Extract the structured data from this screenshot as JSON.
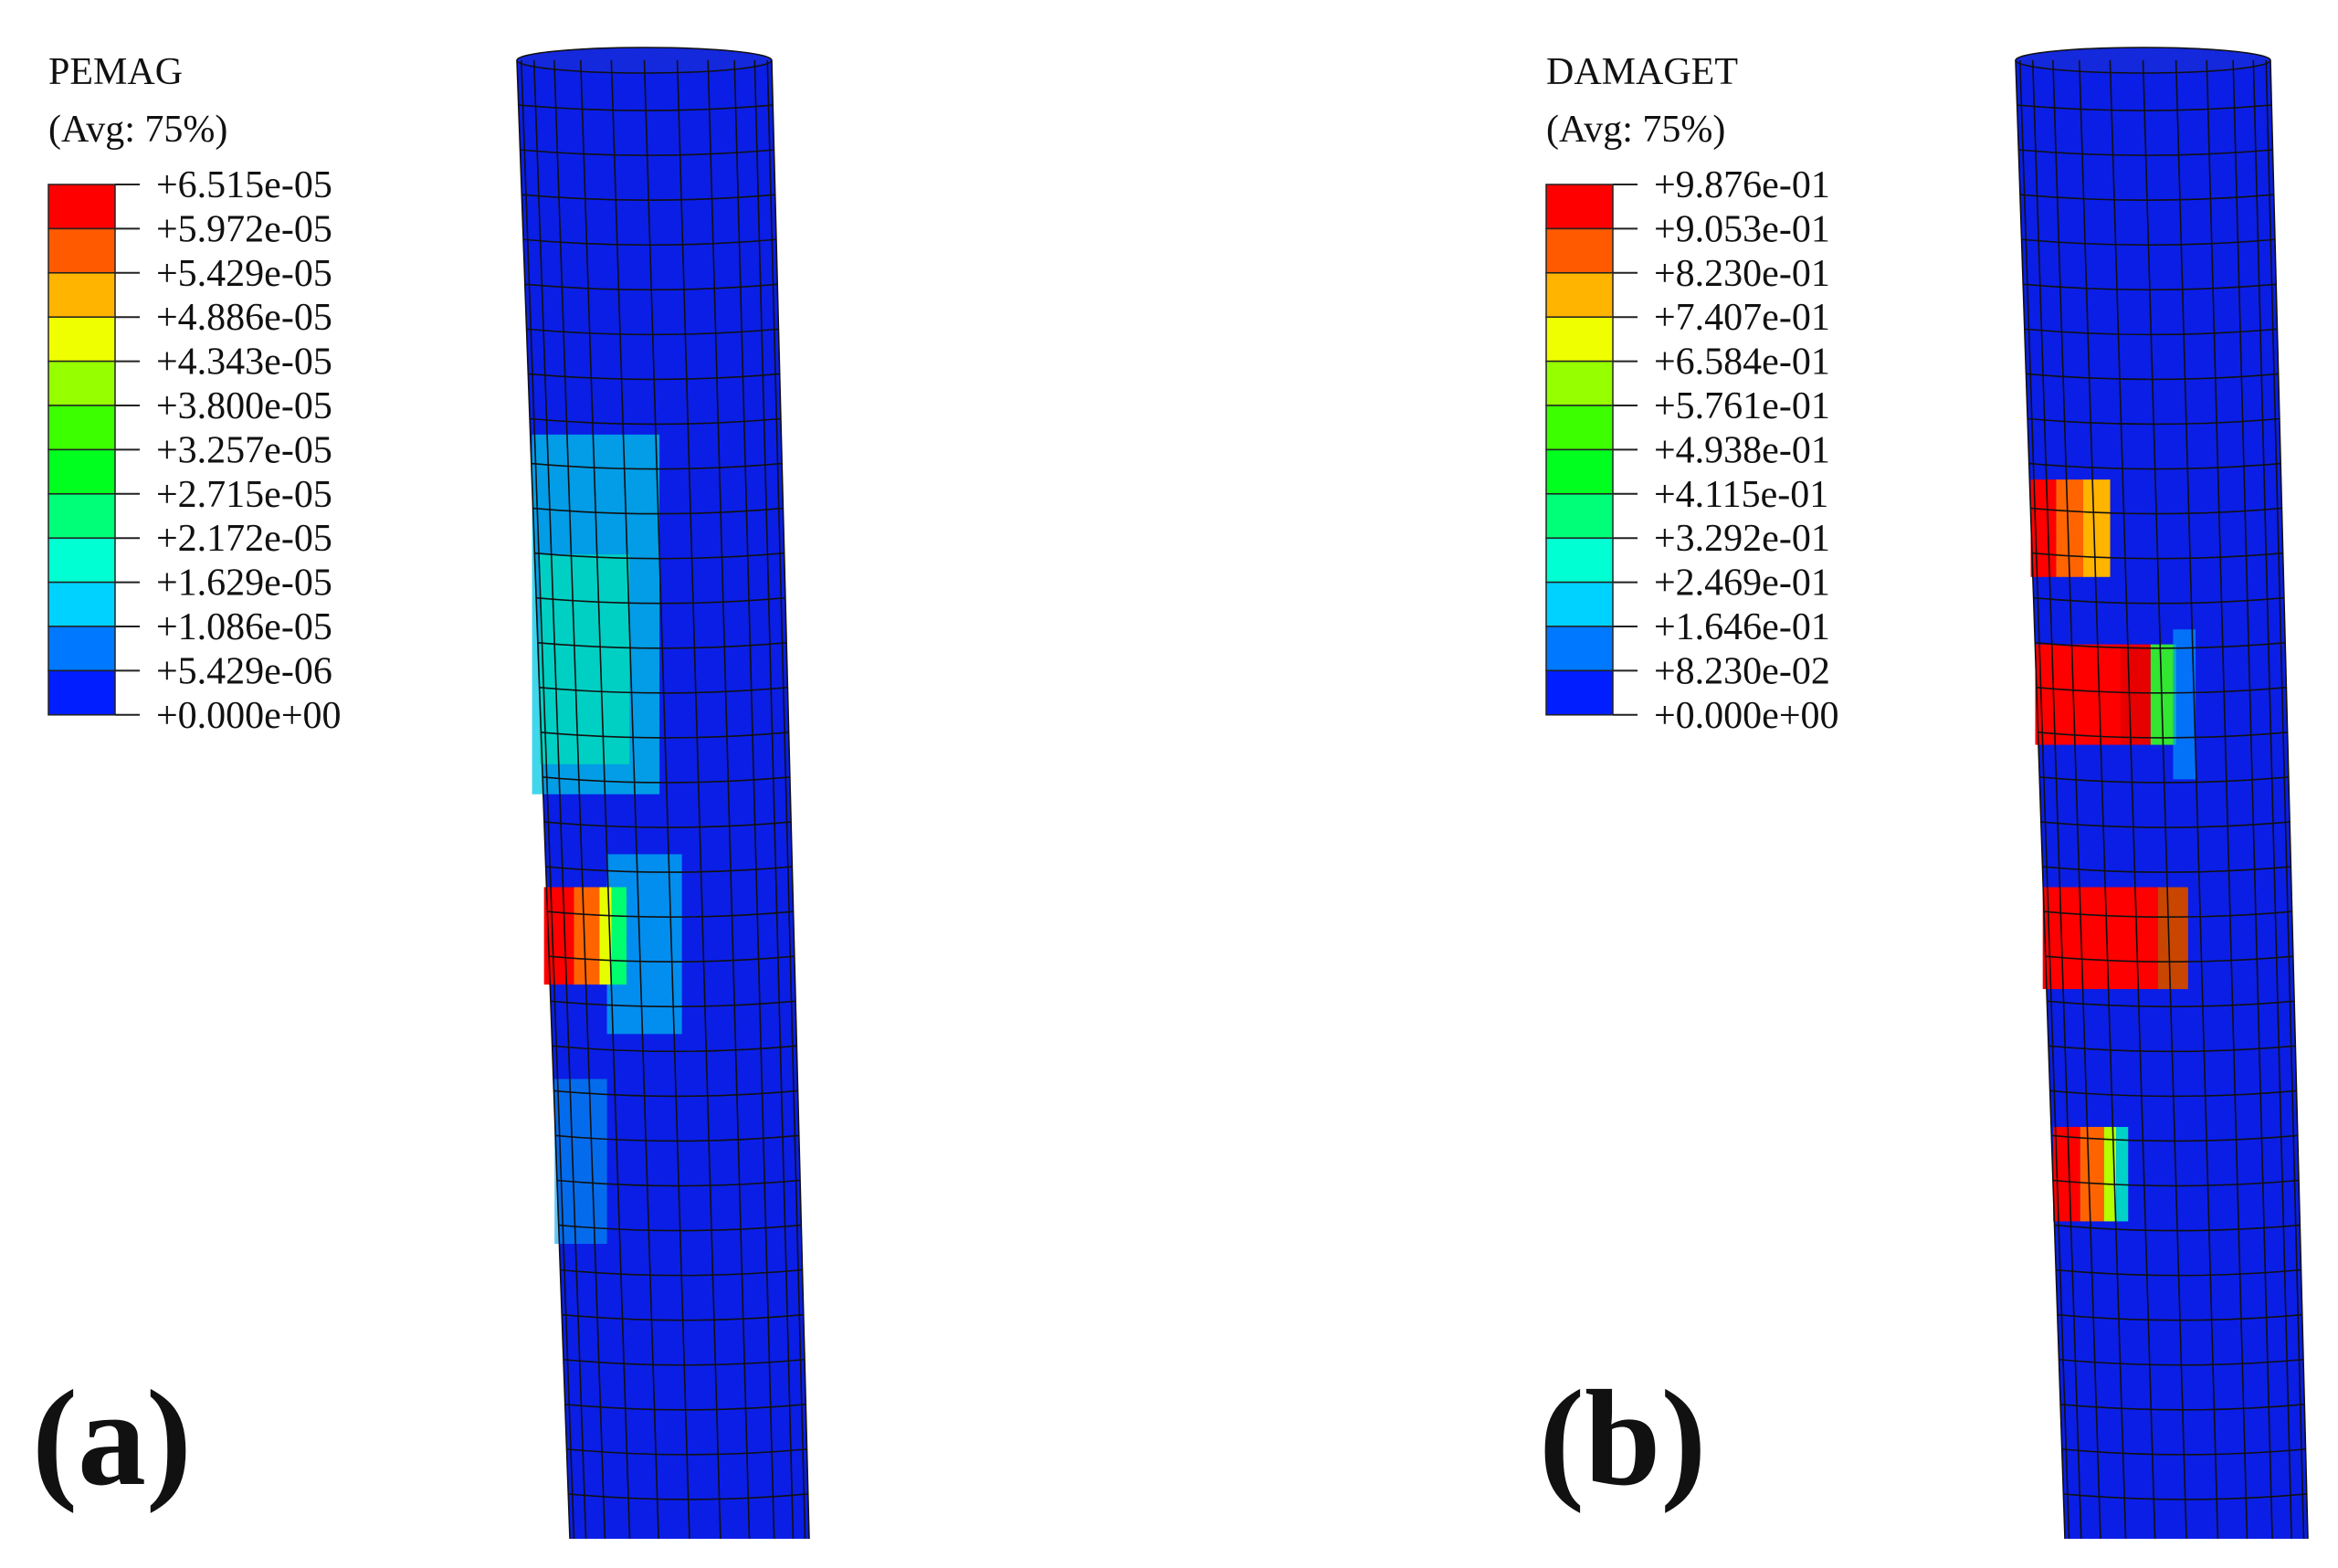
{
  "panels": [
    {
      "label": "(a)",
      "legend": {
        "title": "PEMAG",
        "subtitle": "(Avg: 75%)",
        "labels": [
          "+6.515e-05",
          "+5.972e-05",
          "+5.429e-05",
          "+4.886e-05",
          "+4.343e-05",
          "+3.800e-05",
          "+3.257e-05",
          "+2.715e-05",
          "+2.172e-05",
          "+1.629e-05",
          "+1.086e-05",
          "+5.429e-06",
          "+0.000e+00"
        ]
      }
    },
    {
      "label": "(b)",
      "legend": {
        "title": "DAMAGET",
        "subtitle": "(Avg: 75%)",
        "labels": [
          "+9.876e-01",
          "+9.053e-01",
          "+8.230e-01",
          "+7.407e-01",
          "+6.584e-01",
          "+5.761e-01",
          "+4.938e-01",
          "+4.115e-01",
          "+3.292e-01",
          "+2.469e-01",
          "+1.646e-01",
          "+8.230e-02",
          "+0.000e+00"
        ]
      }
    }
  ]
}
